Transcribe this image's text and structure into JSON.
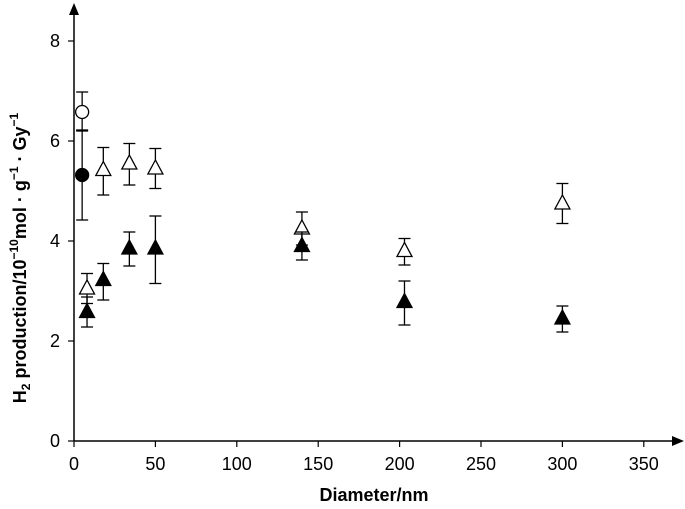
{
  "chart_data": {
    "type": "scatter",
    "xlabel": "Diameter/nm",
    "ylabel": {
      "h": "H",
      "sub2": "2",
      "t1": " production/10",
      "exp_m10": "−10",
      "t2": "mol · g",
      "exp_m1a": "−1",
      "t3": " · Gy",
      "exp_m1b": "−1"
    },
    "xlim": [
      0,
      360
    ],
    "ylim": [
      0,
      8.4
    ],
    "x_ticks": [
      {
        "value": 0,
        "label": "0"
      },
      {
        "value": 50,
        "label": "50"
      },
      {
        "value": 100,
        "label": "100"
      },
      {
        "value": 150,
        "label": "150"
      },
      {
        "value": 200,
        "label": "200"
      },
      {
        "value": 250,
        "label": "250"
      },
      {
        "value": 300,
        "label": "300"
      },
      {
        "value": 350,
        "label": "350"
      }
    ],
    "y_ticks": [
      {
        "value": 0,
        "label": "0"
      },
      {
        "value": 2,
        "label": "2"
      },
      {
        "value": 4,
        "label": "4"
      },
      {
        "value": 6,
        "label": "6"
      },
      {
        "value": 8,
        "label": "8"
      }
    ],
    "grid": false,
    "series": [
      {
        "marker": "open-circle",
        "points": [
          {
            "x": 5,
            "y": 6.58,
            "err_low": 6.2,
            "err_high": 6.98
          }
        ]
      },
      {
        "marker": "filled-circle",
        "points": [
          {
            "x": 5,
            "y": 5.32,
            "err_low": 4.42,
            "err_high": 6.22
          }
        ]
      },
      {
        "marker": "open-triangle",
        "points": [
          {
            "x": 8,
            "y": 3.05,
            "err_low": 2.75,
            "err_high": 3.35
          },
          {
            "x": 18,
            "y": 5.42,
            "err_low": 4.92,
            "err_high": 5.87
          },
          {
            "x": 34,
            "y": 5.55,
            "err_low": 5.12,
            "err_high": 5.95
          },
          {
            "x": 50,
            "y": 5.45,
            "err_low": 5.05,
            "err_high": 5.85
          },
          {
            "x": 140,
            "y": 4.25,
            "err_low": 3.92,
            "err_high": 4.58
          },
          {
            "x": 203,
            "y": 3.8,
            "err_low": 3.52,
            "err_high": 4.05
          },
          {
            "x": 300,
            "y": 4.75,
            "err_low": 4.35,
            "err_high": 5.15
          }
        ]
      },
      {
        "marker": "filled-triangle",
        "points": [
          {
            "x": 8,
            "y": 2.58,
            "err_low": 2.28,
            "err_high": 2.88
          },
          {
            "x": 18,
            "y": 3.22,
            "err_low": 2.82,
            "err_high": 3.55
          },
          {
            "x": 34,
            "y": 3.85,
            "err_low": 3.5,
            "err_high": 4.18
          },
          {
            "x": 50,
            "y": 3.85,
            "err_low": 3.15,
            "err_high": 4.5
          },
          {
            "x": 140,
            "y": 3.9,
            "err_low": 3.62,
            "err_high": 4.18
          },
          {
            "x": 203,
            "y": 2.78,
            "err_low": 2.32,
            "err_high": 3.2
          },
          {
            "x": 300,
            "y": 2.45,
            "err_low": 2.18,
            "err_high": 2.7
          }
        ]
      }
    ]
  }
}
